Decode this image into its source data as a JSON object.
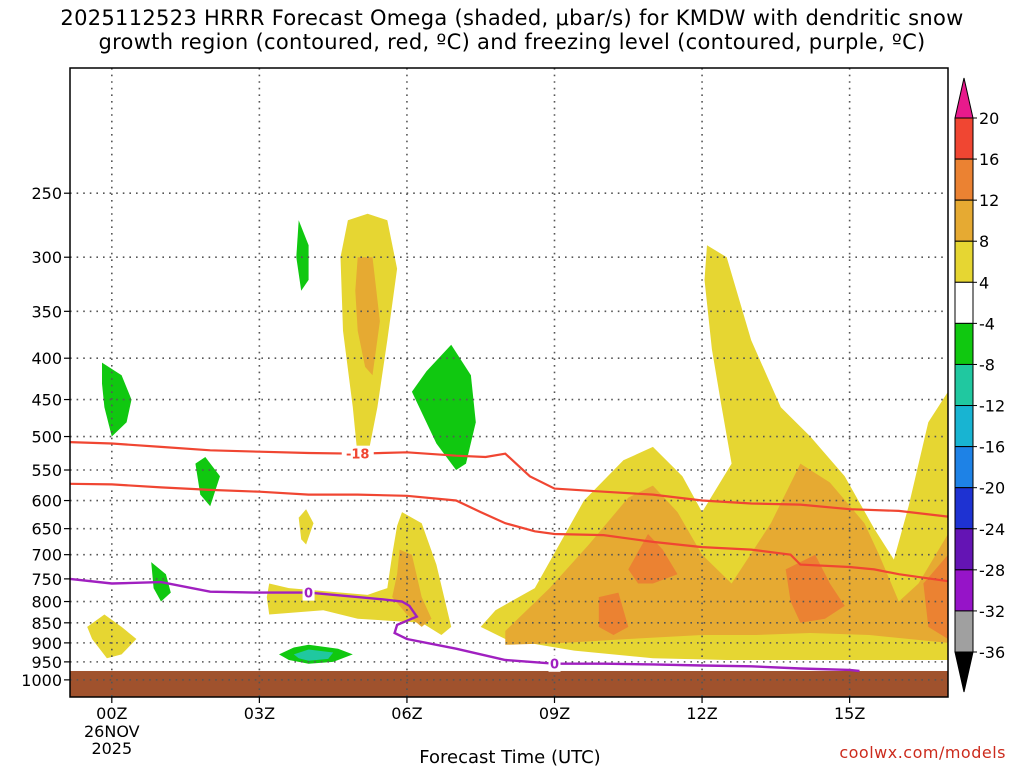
{
  "chart_data": {
    "type": "heatmap",
    "title_line1": "2025112523 HRRR Forecast Omega (shaded, μbar/s) for KMDW with dendritic snow",
    "title_line2": "growth region (contoured, red, ºC) and freezing level (contoured, purple, ºC)",
    "xlabel": "Forecast Time (UTC)",
    "ylabel": "",
    "x_unit": "hours since 00Z 26NOV2025",
    "xlim": [
      -0.85,
      17.0
    ],
    "x_ticks": [
      {
        "x": 0,
        "label": "00Z",
        "sub1": "26NOV",
        "sub2": "2025"
      },
      {
        "x": 3,
        "label": "03Z"
      },
      {
        "x": 6,
        "label": "06Z"
      },
      {
        "x": 9,
        "label": "09Z"
      },
      {
        "x": 12,
        "label": "12Z"
      },
      {
        "x": 15,
        "label": "15Z"
      }
    ],
    "y_unit": "hPa (log scale, inverted)",
    "ylim": [
      1050,
      175
    ],
    "y_ticks": [
      250,
      300,
      350,
      400,
      450,
      500,
      550,
      600,
      650,
      700,
      750,
      800,
      850,
      900,
      950,
      1000
    ],
    "grid": true,
    "ground_level_hPa": 975,
    "ground_color": "#a0522d",
    "colorbar": {
      "labels": [
        "20",
        "16",
        "12",
        "8",
        "4",
        "-4",
        "-8",
        "-12",
        "-16",
        "-20",
        "-24",
        "-28",
        "-32",
        "-36"
      ],
      "colors": [
        "#e81a8c",
        "#f04632",
        "#eb8232",
        "#e6aa32",
        "#e6d632",
        "#ffffff",
        "#10c810",
        "#20c8a0",
        "#18b4d2",
        "#1e82e6",
        "#1e32d2",
        "#6414b4",
        "#9614c8",
        "#a0a0a0",
        "#000000"
      ]
    },
    "omega_regions": [
      {
        "level": "4",
        "color": "#e6d632",
        "points": [
          [
            4.8,
            270
          ],
          [
            5.2,
            265
          ],
          [
            5.6,
            270
          ],
          [
            5.8,
            310
          ],
          [
            5.6,
            380
          ],
          [
            5.4,
            460
          ],
          [
            5.2,
            530
          ],
          [
            5.0,
            530
          ],
          [
            4.9,
            460
          ],
          [
            4.7,
            370
          ],
          [
            4.65,
            300
          ]
        ]
      },
      {
        "level": "8",
        "color": "#e6aa32",
        "points": [
          [
            5.0,
            300
          ],
          [
            5.3,
            300
          ],
          [
            5.45,
            360
          ],
          [
            5.3,
            420
          ],
          [
            5.15,
            410
          ],
          [
            5.0,
            370
          ],
          [
            4.95,
            330
          ]
        ]
      },
      {
        "level": "4",
        "color": "#e6d632",
        "points": [
          [
            3.8,
            630
          ],
          [
            3.95,
            615
          ],
          [
            4.1,
            640
          ],
          [
            3.95,
            680
          ],
          [
            3.85,
            670
          ]
        ]
      },
      {
        "level": "4",
        "color": "#e6d632",
        "points": [
          [
            -0.5,
            860
          ],
          [
            -0.15,
            830
          ],
          [
            0.2,
            860
          ],
          [
            0.5,
            890
          ],
          [
            0.2,
            930
          ],
          [
            -0.1,
            940
          ],
          [
            -0.4,
            890
          ]
        ]
      },
      {
        "level": "4",
        "color": "#e6d632",
        "points": [
          [
            3.2,
            760
          ],
          [
            3.6,
            770
          ],
          [
            5.2,
            785
          ],
          [
            5.6,
            770
          ],
          [
            5.7,
            700
          ],
          [
            5.8,
            645
          ],
          [
            5.9,
            620
          ],
          [
            6.3,
            640
          ],
          [
            6.6,
            720
          ],
          [
            6.9,
            860
          ],
          [
            6.7,
            880
          ],
          [
            6.3,
            850
          ],
          [
            5.0,
            840
          ],
          [
            4.3,
            820
          ],
          [
            3.2,
            830
          ],
          [
            3.15,
            790
          ]
        ]
      },
      {
        "level": "8",
        "color": "#e6aa32",
        "points": [
          [
            5.85,
            690
          ],
          [
            6.1,
            700
          ],
          [
            6.3,
            790
          ],
          [
            6.5,
            840
          ],
          [
            6.3,
            860
          ],
          [
            6.0,
            830
          ],
          [
            5.7,
            790
          ],
          [
            5.8,
            740
          ]
        ]
      },
      {
        "level": "4",
        "color": "#e6d632",
        "points": [
          [
            12.1,
            290
          ],
          [
            12.5,
            300
          ],
          [
            13.0,
            380
          ],
          [
            13.6,
            460
          ],
          [
            14.2,
            500
          ],
          [
            14.9,
            560
          ],
          [
            15.5,
            650
          ],
          [
            15.9,
            710
          ],
          [
            16.2,
            610
          ],
          [
            16.6,
            480
          ],
          [
            17.0,
            440
          ],
          [
            17.0,
            945
          ],
          [
            12.5,
            945
          ],
          [
            11.0,
            940
          ],
          [
            9.4,
            920
          ],
          [
            8.0,
            890
          ],
          [
            7.5,
            860
          ],
          [
            7.8,
            820
          ],
          [
            8.6,
            770
          ],
          [
            9.6,
            600
          ],
          [
            10.4,
            535
          ],
          [
            11.0,
            515
          ],
          [
            11.6,
            560
          ],
          [
            12.0,
            620
          ],
          [
            12.6,
            540
          ],
          [
            12.4,
            460
          ],
          [
            12.2,
            390
          ],
          [
            12.05,
            320
          ]
        ]
      },
      {
        "level": "8",
        "color": "#e6aa32",
        "points": [
          [
            8.0,
            870
          ],
          [
            8.9,
            770
          ],
          [
            9.7,
            680
          ],
          [
            10.5,
            595
          ],
          [
            11.0,
            575
          ],
          [
            11.5,
            620
          ],
          [
            12.0,
            700
          ],
          [
            12.6,
            760
          ],
          [
            13.4,
            640
          ],
          [
            14.0,
            540
          ],
          [
            14.6,
            570
          ],
          [
            15.3,
            640
          ],
          [
            15.6,
            700
          ],
          [
            16.0,
            800
          ],
          [
            16.4,
            760
          ],
          [
            17.0,
            660
          ],
          [
            17.0,
            900
          ],
          [
            15.4,
            880
          ],
          [
            14.2,
            875
          ],
          [
            13.1,
            880
          ],
          [
            12.0,
            880
          ],
          [
            10.5,
            890
          ],
          [
            9.2,
            900
          ],
          [
            8.0,
            905
          ]
        ]
      },
      {
        "level": "12",
        "color": "#eb8232",
        "points": [
          [
            9.9,
            790
          ],
          [
            10.3,
            780
          ],
          [
            10.5,
            860
          ],
          [
            10.2,
            880
          ],
          [
            9.9,
            860
          ]
        ]
      },
      {
        "level": "12",
        "color": "#eb8232",
        "points": [
          [
            10.5,
            730
          ],
          [
            10.9,
            660
          ],
          [
            11.2,
            690
          ],
          [
            11.5,
            740
          ],
          [
            11.0,
            760
          ],
          [
            10.7,
            760
          ]
        ]
      },
      {
        "level": "12",
        "color": "#eb8232",
        "points": [
          [
            13.7,
            730
          ],
          [
            14.3,
            700
          ],
          [
            14.6,
            760
          ],
          [
            14.9,
            810
          ],
          [
            14.5,
            840
          ],
          [
            14.0,
            850
          ],
          [
            13.8,
            800
          ]
        ]
      },
      {
        "level": "12",
        "color": "#eb8232",
        "points": [
          [
            16.5,
            760
          ],
          [
            17.0,
            700
          ],
          [
            17.0,
            890
          ],
          [
            16.6,
            860
          ]
        ]
      },
      {
        "level": "-4",
        "color": "#10c810",
        "points": [
          [
            3.8,
            270
          ],
          [
            4.0,
            290
          ],
          [
            4.0,
            320
          ],
          [
            3.85,
            330
          ],
          [
            3.75,
            300
          ]
        ]
      },
      {
        "level": "-4",
        "color": "#10c810",
        "points": [
          [
            -0.2,
            405
          ],
          [
            0.2,
            420
          ],
          [
            0.4,
            450
          ],
          [
            0.3,
            480
          ],
          [
            0.0,
            500
          ],
          [
            -0.15,
            460
          ],
          [
            -0.2,
            430
          ]
        ]
      },
      {
        "level": "-4",
        "color": "#10c810",
        "points": [
          [
            1.7,
            540
          ],
          [
            1.9,
            530
          ],
          [
            2.2,
            560
          ],
          [
            2.0,
            610
          ],
          [
            1.8,
            590
          ]
        ]
      },
      {
        "level": "-4",
        "color": "#10c810",
        "points": [
          [
            0.8,
            715
          ],
          [
            1.1,
            740
          ],
          [
            1.2,
            780
          ],
          [
            1.0,
            800
          ],
          [
            0.85,
            770
          ]
        ]
      },
      {
        "level": "-4",
        "color": "#10c810",
        "points": [
          [
            6.9,
            385
          ],
          [
            7.3,
            420
          ],
          [
            7.4,
            480
          ],
          [
            7.2,
            540
          ],
          [
            7.0,
            550
          ],
          [
            6.6,
            510
          ],
          [
            6.1,
            440
          ],
          [
            6.4,
            415
          ]
        ]
      },
      {
        "level": "-4",
        "color": "#10c810",
        "points": [
          [
            3.4,
            930
          ],
          [
            3.7,
            912
          ],
          [
            4.0,
            905
          ],
          [
            4.6,
            915
          ],
          [
            4.9,
            930
          ],
          [
            4.5,
            950
          ],
          [
            4.0,
            955
          ],
          [
            3.6,
            945
          ]
        ]
      },
      {
        "level": "-8",
        "color": "#20c8a0",
        "points": [
          [
            3.7,
            930
          ],
          [
            4.0,
            917
          ],
          [
            4.5,
            925
          ],
          [
            4.4,
            942
          ],
          [
            4.0,
            947
          ],
          [
            3.8,
            940
          ]
        ]
      }
    ],
    "dendritic_contours": [
      {
        "level": "-18",
        "color": "#f04632",
        "label": "-18",
        "label_at": [
          5.0,
          525
        ],
        "points": [
          [
            -0.85,
            508
          ],
          [
            0.0,
            510
          ],
          [
            1.0,
            515
          ],
          [
            2.0,
            520
          ],
          [
            3.0,
            522
          ],
          [
            4.0,
            524
          ],
          [
            5.0,
            525
          ],
          [
            6.0,
            523
          ],
          [
            7.0,
            528
          ],
          [
            7.6,
            530
          ],
          [
            8.0,
            525
          ],
          [
            8.5,
            560
          ],
          [
            9.0,
            580
          ],
          [
            10.0,
            585
          ],
          [
            11.0,
            590
          ],
          [
            12.0,
            600
          ],
          [
            13.0,
            605
          ],
          [
            14.0,
            607
          ],
          [
            15.0,
            615
          ],
          [
            16.0,
            618
          ],
          [
            17.0,
            628
          ]
        ]
      },
      {
        "level": "-12",
        "color": "#f04632",
        "points": [
          [
            -0.85,
            572
          ],
          [
            0.0,
            573
          ],
          [
            1.0,
            578
          ],
          [
            2.0,
            582
          ],
          [
            3.0,
            585
          ],
          [
            4.0,
            590
          ],
          [
            5.0,
            590
          ],
          [
            6.0,
            592
          ],
          [
            7.0,
            600
          ],
          [
            7.5,
            620
          ],
          [
            8.0,
            640
          ],
          [
            8.6,
            655
          ],
          [
            9.0,
            660
          ],
          [
            10.0,
            662
          ],
          [
            11.0,
            675
          ],
          [
            12.0,
            685
          ],
          [
            13.0,
            690
          ],
          [
            13.8,
            700
          ],
          [
            14.0,
            720
          ],
          [
            15.0,
            725
          ],
          [
            15.5,
            730
          ],
          [
            16.0,
            740
          ],
          [
            17.0,
            755
          ]
        ]
      }
    ],
    "freezing_level": {
      "level": "0",
      "color": "#a020c0",
      "labels": [
        {
          "text": "0",
          "at": [
            4.0,
            780
          ]
        },
        {
          "text": "0",
          "at": [
            9.0,
            955
          ]
        }
      ],
      "points": [
        [
          -0.85,
          750
        ],
        [
          0.0,
          760
        ],
        [
          1.0,
          757
        ],
        [
          2.0,
          778
        ],
        [
          3.0,
          780
        ],
        [
          4.0,
          780
        ],
        [
          5.0,
          790
        ],
        [
          5.5,
          795
        ],
        [
          5.9,
          800
        ],
        [
          6.05,
          810
        ],
        [
          6.2,
          835
        ],
        [
          5.8,
          855
        ],
        [
          5.75,
          875
        ],
        [
          6.0,
          890
        ],
        [
          7.0,
          915
        ],
        [
          8.0,
          945
        ],
        [
          9.0,
          955
        ],
        [
          10.0,
          955
        ],
        [
          11.0,
          957
        ],
        [
          12.0,
          960
        ],
        [
          13.0,
          962
        ],
        [
          14.0,
          968
        ],
        [
          15.0,
          972
        ],
        [
          15.2,
          975
        ]
      ]
    }
  },
  "axes": {
    "xlabel_text": "Forecast Time (UTC)"
  },
  "credit": "coolwx.com/models"
}
